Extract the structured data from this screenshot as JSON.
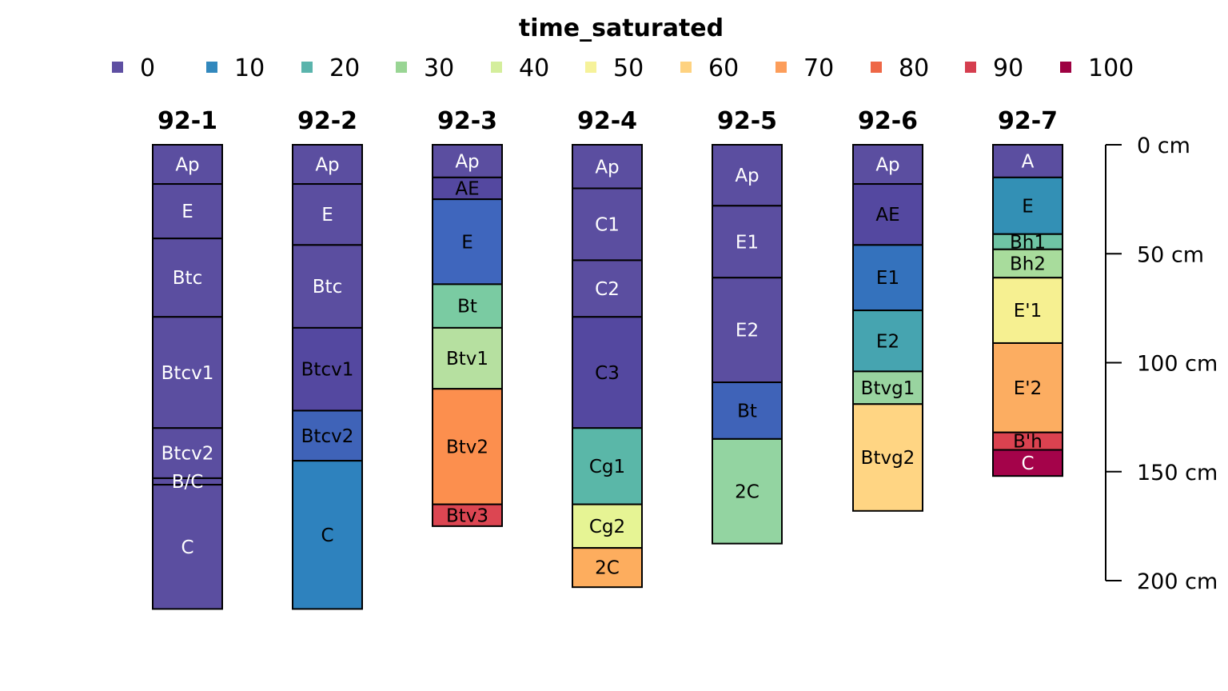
{
  "chart_data": {
    "type": "soil-profile",
    "legend": {
      "title": "time_saturated",
      "items": [
        {
          "label": "0",
          "color": "#5E4FA2"
        },
        {
          "label": "10",
          "color": "#3288BD"
        },
        {
          "label": "20",
          "color": "#5AB4AC"
        },
        {
          "label": "30",
          "color": "#99D594"
        },
        {
          "label": "40",
          "color": "#D4EE9C"
        },
        {
          "label": "50",
          "color": "#F6F29A"
        },
        {
          "label": "60",
          "color": "#FED280"
        },
        {
          "label": "70",
          "color": "#FC9D5A"
        },
        {
          "label": "80",
          "color": "#EE6746"
        },
        {
          "label": "90",
          "color": "#D53E4F"
        },
        {
          "label": "100",
          "color": "#9E0142"
        }
      ]
    },
    "depth_axis": {
      "unit": "cm",
      "ylim": [
        0,
        200
      ],
      "ticks": [
        {
          "value": 0,
          "label": "0 cm"
        },
        {
          "value": 50,
          "label": "50 cm"
        },
        {
          "value": 100,
          "label": "100 cm"
        },
        {
          "value": 150,
          "label": "150 cm"
        },
        {
          "value": 200,
          "label": "200 cm"
        }
      ]
    },
    "profiles": [
      {
        "id": "92-1",
        "horizons": [
          {
            "name": "Ap",
            "top": 0,
            "bottom": 18,
            "color": "#5B4EA0",
            "text_color": "#ffffff"
          },
          {
            "name": "E",
            "top": 18,
            "bottom": 43,
            "color": "#5B4EA0",
            "text_color": "#ffffff"
          },
          {
            "name": "Btc",
            "top": 43,
            "bottom": 79,
            "color": "#5B4EA0",
            "text_color": "#ffffff"
          },
          {
            "name": "Btcv1",
            "top": 79,
            "bottom": 130,
            "color": "#5B4EA0",
            "text_color": "#ffffff"
          },
          {
            "name": "Btcv2",
            "top": 130,
            "bottom": 153,
            "color": "#5B4EA0",
            "text_color": "#ffffff"
          },
          {
            "name": "B/C",
            "top": 153,
            "bottom": 156,
            "color": "#5B4EA0",
            "text_color": "#ffffff"
          },
          {
            "name": "C",
            "top": 156,
            "bottom": 213,
            "color": "#5B4EA0",
            "text_color": "#ffffff"
          }
        ]
      },
      {
        "id": "92-2",
        "horizons": [
          {
            "name": "Ap",
            "top": 0,
            "bottom": 18,
            "color": "#5B4EA0",
            "text_color": "#ffffff"
          },
          {
            "name": "E",
            "top": 18,
            "bottom": 46,
            "color": "#5B4EA0",
            "text_color": "#ffffff"
          },
          {
            "name": "Btc",
            "top": 46,
            "bottom": 84,
            "color": "#5B4EA0",
            "text_color": "#ffffff"
          },
          {
            "name": "Btcv1",
            "top": 84,
            "bottom": 122,
            "color": "#5448A0",
            "text_color": "#000000"
          },
          {
            "name": "Btcv2",
            "top": 122,
            "bottom": 145,
            "color": "#3F63B8",
            "text_color": "#000000"
          },
          {
            "name": "C",
            "top": 145,
            "bottom": 213,
            "color": "#2E82BE",
            "text_color": "#000000"
          }
        ]
      },
      {
        "id": "92-3",
        "horizons": [
          {
            "name": "Ap",
            "top": 0,
            "bottom": 15,
            "color": "#5B4EA0",
            "text_color": "#ffffff"
          },
          {
            "name": "AE",
            "top": 15,
            "bottom": 25,
            "color": "#5448A0",
            "text_color": "#000000"
          },
          {
            "name": "E",
            "top": 25,
            "bottom": 64,
            "color": "#3F66BD",
            "text_color": "#000000"
          },
          {
            "name": "Bt",
            "top": 64,
            "bottom": 84,
            "color": "#7ACBA2",
            "text_color": "#000000"
          },
          {
            "name": "Btv1",
            "top": 84,
            "bottom": 112,
            "color": "#B6E0A0",
            "text_color": "#000000"
          },
          {
            "name": "Btv2",
            "top": 112,
            "bottom": 165,
            "color": "#FC8F4E",
            "text_color": "#000000"
          },
          {
            "name": "Btv3",
            "top": 165,
            "bottom": 175,
            "color": "#DC4652",
            "text_color": "#000000"
          }
        ]
      },
      {
        "id": "92-4",
        "horizons": [
          {
            "name": "Ap",
            "top": 0,
            "bottom": 20,
            "color": "#5B4EA0",
            "text_color": "#ffffff"
          },
          {
            "name": "C1",
            "top": 20,
            "bottom": 53,
            "color": "#5B4EA0",
            "text_color": "#ffffff"
          },
          {
            "name": "C2",
            "top": 53,
            "bottom": 79,
            "color": "#5B4EA0",
            "text_color": "#ffffff"
          },
          {
            "name": "C3",
            "top": 79,
            "bottom": 130,
            "color": "#5448A0",
            "text_color": "#000000"
          },
          {
            "name": "Cg1",
            "top": 130,
            "bottom": 165,
            "color": "#5AB7A8",
            "text_color": "#000000"
          },
          {
            "name": "Cg2",
            "top": 165,
            "bottom": 185,
            "color": "#E6F494",
            "text_color": "#000000"
          },
          {
            "name": "2C",
            "top": 185,
            "bottom": 203,
            "color": "#FDAD5E",
            "text_color": "#000000"
          }
        ]
      },
      {
        "id": "92-5",
        "horizons": [
          {
            "name": "Ap",
            "top": 0,
            "bottom": 28,
            "color": "#5B4EA0",
            "text_color": "#ffffff"
          },
          {
            "name": "E1",
            "top": 28,
            "bottom": 61,
            "color": "#5B4EA0",
            "text_color": "#ffffff"
          },
          {
            "name": "E2",
            "top": 61,
            "bottom": 109,
            "color": "#5B4EA0",
            "text_color": "#ffffff"
          },
          {
            "name": "Bt",
            "top": 109,
            "bottom": 135,
            "color": "#3F63B8",
            "text_color": "#000000"
          },
          {
            "name": "2C",
            "top": 135,
            "bottom": 183,
            "color": "#93D4A1",
            "text_color": "#000000"
          }
        ]
      },
      {
        "id": "92-6",
        "horizons": [
          {
            "name": "Ap",
            "top": 0,
            "bottom": 18,
            "color": "#5B4EA0",
            "text_color": "#ffffff"
          },
          {
            "name": "AE",
            "top": 18,
            "bottom": 46,
            "color": "#5448A0",
            "text_color": "#000000"
          },
          {
            "name": "E1",
            "top": 46,
            "bottom": 76,
            "color": "#3472BD",
            "text_color": "#000000"
          },
          {
            "name": "E2",
            "top": 76,
            "bottom": 104,
            "color": "#46A4B0",
            "text_color": "#000000"
          },
          {
            "name": "Btvg1",
            "top": 104,
            "bottom": 119,
            "color": "#99D4A0",
            "text_color": "#000000"
          },
          {
            "name": "Btvg2",
            "top": 119,
            "bottom": 168,
            "color": "#FFD583",
            "text_color": "#000000"
          }
        ]
      },
      {
        "id": "92-7",
        "horizons": [
          {
            "name": "A",
            "top": 0,
            "bottom": 15,
            "color": "#5B4EA0",
            "text_color": "#ffffff"
          },
          {
            "name": "E",
            "top": 15,
            "bottom": 41,
            "color": "#3390B5",
            "text_color": "#000000"
          },
          {
            "name": "Bh1",
            "top": 41,
            "bottom": 48,
            "color": "#6FC4A4",
            "text_color": "#000000"
          },
          {
            "name": "Bh2",
            "top": 48,
            "bottom": 61,
            "color": "#A8DC9C",
            "text_color": "#000000"
          },
          {
            "name": "E'1",
            "top": 61,
            "bottom": 91,
            "color": "#F6F091",
            "text_color": "#000000"
          },
          {
            "name": "E'2",
            "top": 91,
            "bottom": 132,
            "color": "#FCAD61",
            "text_color": "#000000"
          },
          {
            "name": "B'h",
            "top": 132,
            "bottom": 140,
            "color": "#DA4250",
            "text_color": "#000000"
          },
          {
            "name": "C",
            "top": 140,
            "bottom": 152,
            "color": "#A4034A",
            "text_color": "#ffffff"
          }
        ]
      }
    ]
  }
}
